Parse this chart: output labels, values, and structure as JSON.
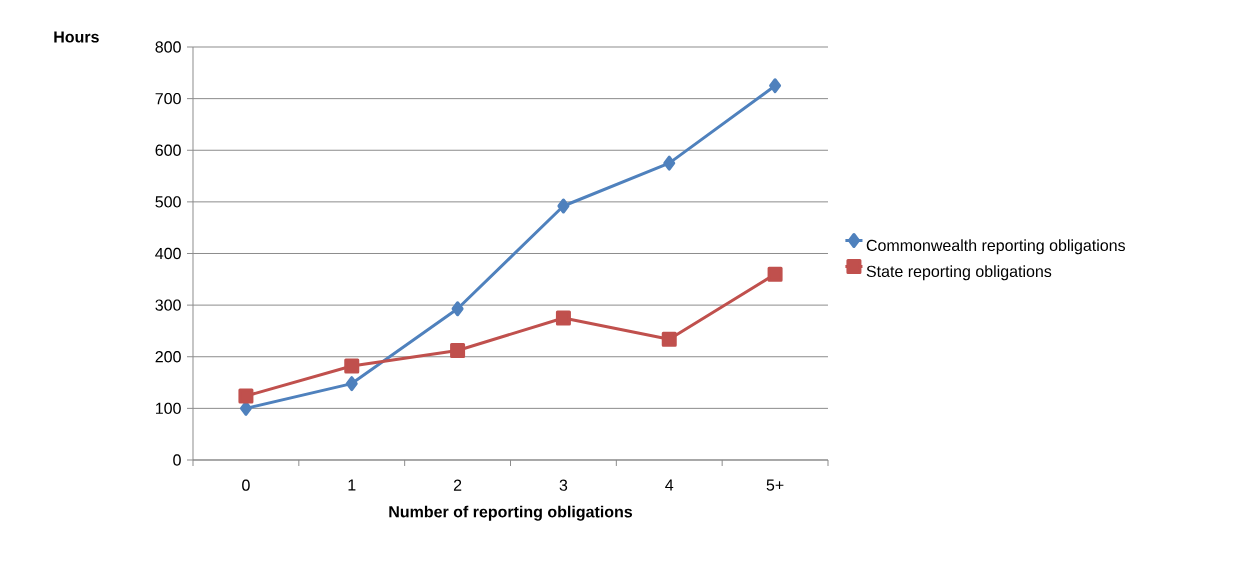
{
  "chart_data": {
    "type": "line",
    "ylabel": "Hours",
    "xlabel": "Number of reporting obligations",
    "categories": [
      "0",
      "1",
      "2",
      "3",
      "4",
      "5+"
    ],
    "series": [
      {
        "name": "Commonwealth reporting obligations",
        "color": "#4f81bd",
        "marker": "diamond",
        "values": [
          100,
          148,
          293,
          492,
          575,
          725
        ]
      },
      {
        "name": "State reporting obligations",
        "color": "#c0504d",
        "marker": "square",
        "values": [
          124,
          182,
          212,
          275,
          234,
          360
        ]
      }
    ],
    "ylim": [
      0,
      800
    ],
    "yticks": [
      0,
      100,
      200,
      300,
      400,
      500,
      600,
      700,
      800
    ],
    "grid": "y",
    "legend": "right",
    "line_style": "solid"
  }
}
